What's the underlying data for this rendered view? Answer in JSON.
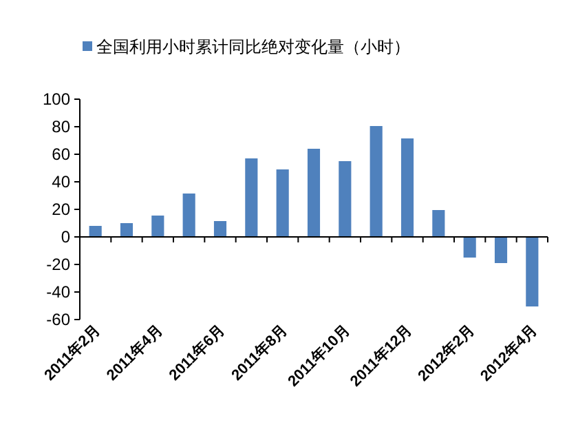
{
  "chart_data": {
    "type": "bar",
    "categories": [
      "2011年2月",
      null,
      "2011年4月",
      null,
      "2011年6月",
      null,
      "2011年8月",
      null,
      "2011年10月",
      null,
      "2011年12月",
      null,
      "2012年2月",
      null,
      "2012年4月"
    ],
    "series": [
      {
        "name": "全国利用小时累计同比绝对变化量（小时）",
        "color": "#4f81bd",
        "values": [
          8,
          10,
          15.5,
          31.5,
          11.5,
          57,
          49,
          64,
          55,
          80.5,
          71.5,
          19.5,
          -15,
          -19,
          -50.5
        ]
      }
    ],
    "ylim": [
      -60,
      100
    ],
    "yticks": [
      -60,
      -40,
      -20,
      0,
      20,
      40,
      60,
      80,
      100
    ],
    "legend": "top"
  }
}
